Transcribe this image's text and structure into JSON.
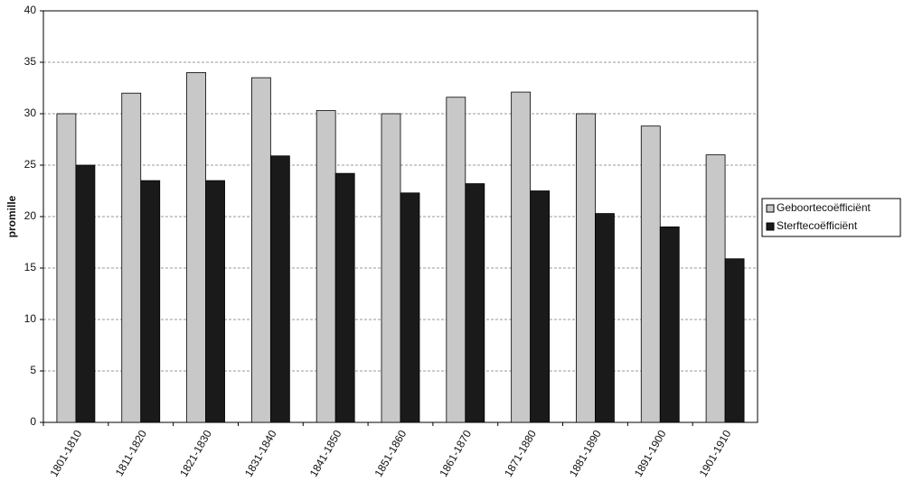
{
  "chart_data": {
    "type": "bar",
    "y_label": "promille",
    "categories": [
      "1801-1810",
      "1811-1820",
      "1821-1830",
      "1831-1840",
      "1841-1850",
      "1851-1860",
      "1861-1870",
      "1871-1880",
      "1881-1890",
      "1891-1900",
      "1901-1910"
    ],
    "series": [
      {
        "name": "Geboortecoëfficiënt",
        "color": "#c8c8c8",
        "values": [
          30,
          32,
          34,
          33.5,
          30.3,
          30,
          31.6,
          32.1,
          30,
          28.8,
          26
        ]
      },
      {
        "name": "Sterftecoëfficiënt",
        "color": "#1a1a1a",
        "values": [
          25,
          23.5,
          23.5,
          25.9,
          24.2,
          22.3,
          23.2,
          22.5,
          20.3,
          19,
          15.9
        ]
      }
    ],
    "ylim": [
      0,
      40
    ],
    "yticks": [
      0,
      5,
      10,
      15,
      20,
      25,
      30,
      35,
      40
    ],
    "grid": true,
    "legend": "right"
  }
}
